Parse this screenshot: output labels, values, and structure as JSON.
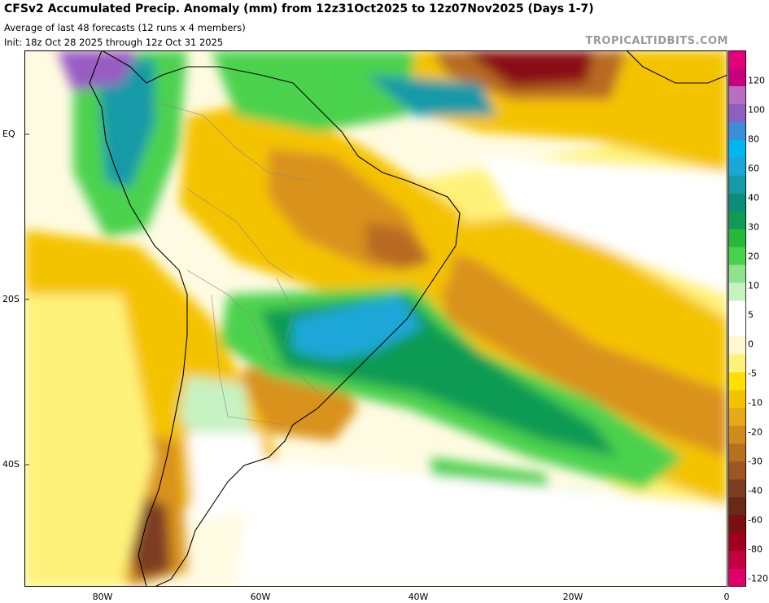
{
  "header": {
    "title": "CFSv2 Accumulated Precip. Anomaly (mm) from 12z31Oct2025 to 12z07Nov2025 (Days 1-7)",
    "subtitle": "Average of last 48 forecasts (12 runs x 4 members)",
    "init": "Init: 18z Oct 28 2025 through 12z Oct 31 2025",
    "credit": "TROPICALTIDBITS.COM"
  },
  "axes": {
    "lat_labels": [
      "EQ",
      "20S",
      "40S"
    ],
    "lon_labels": [
      "80W",
      "60W",
      "40W",
      "20W",
      "0"
    ]
  },
  "colorbar": {
    "labels": [
      "120",
      "100",
      "80",
      "60",
      "40",
      "30",
      "20",
      "10",
      "5",
      "0",
      "-5",
      "-10",
      "-20",
      "-30",
      "-40",
      "-60",
      "-80",
      "-120"
    ],
    "colors": [
      "#e5007a",
      "#c8007f",
      "#b76fc4",
      "#8f5fc0",
      "#3d8ed8",
      "#00b6f0",
      "#1aa7d8",
      "#159aa8",
      "#0c8d7a",
      "#109b52",
      "#27b83c",
      "#4bd24d",
      "#8ee38c",
      "#c7f2c2",
      "#ffffff",
      "#ffffff",
      "#fffacd",
      "#fff27a",
      "#ffe000",
      "#f4c300",
      "#e8a818",
      "#cf8c1c",
      "#b8701e",
      "#9c5622",
      "#7e3c20",
      "#6a2818",
      "#7a1010",
      "#a00020",
      "#c40040",
      "#e0006a"
    ]
  },
  "colors": {
    "ocean_base": "#fffbe2",
    "dry_light": "#fff27a",
    "dry_mid": "#f4c300",
    "dry_strong": "#d9921c",
    "dry_very": "#b86a22",
    "dry_extreme": "#7e3c20",
    "dry_max": "#8a0d18",
    "wet_light": "#c7f2c2",
    "wet_mid": "#4bd24d",
    "wet_strong": "#109b52",
    "wet_very": "#159aa8",
    "wet_max": "#1aa7d8",
    "wet_purple": "#9a5bc4",
    "coast": "#000000",
    "border": "#888888"
  }
}
